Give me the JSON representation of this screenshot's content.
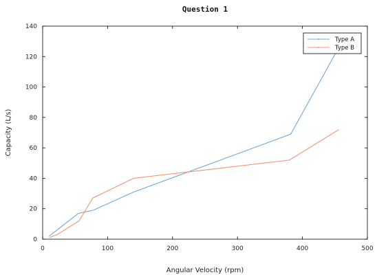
{
  "chart_data": {
    "type": "line",
    "title": "Question 1",
    "xlabel": "Angular Velocity (rpm)",
    "ylabel": "Capacity (L/s)",
    "xlim": [
      0,
      500
    ],
    "ylim": [
      0,
      140
    ],
    "xticks": [
      0,
      100,
      200,
      300,
      400,
      500
    ],
    "yticks": [
      0,
      20,
      40,
      60,
      80,
      100,
      120,
      140
    ],
    "grid": false,
    "legend_position": "top-right",
    "series": [
      {
        "name": "Type A",
        "color": "#6fa8d6",
        "x": [
          10,
          55,
          78,
          140,
          382,
          456
        ],
        "y": [
          2,
          17,
          19,
          31,
          69,
          126
        ]
      },
      {
        "name": "Type B",
        "color": "#f0956f",
        "x": [
          10,
          22,
          56,
          77,
          140,
          380,
          456
        ],
        "y": [
          1,
          3,
          12,
          27,
          40,
          52,
          72
        ]
      }
    ]
  }
}
